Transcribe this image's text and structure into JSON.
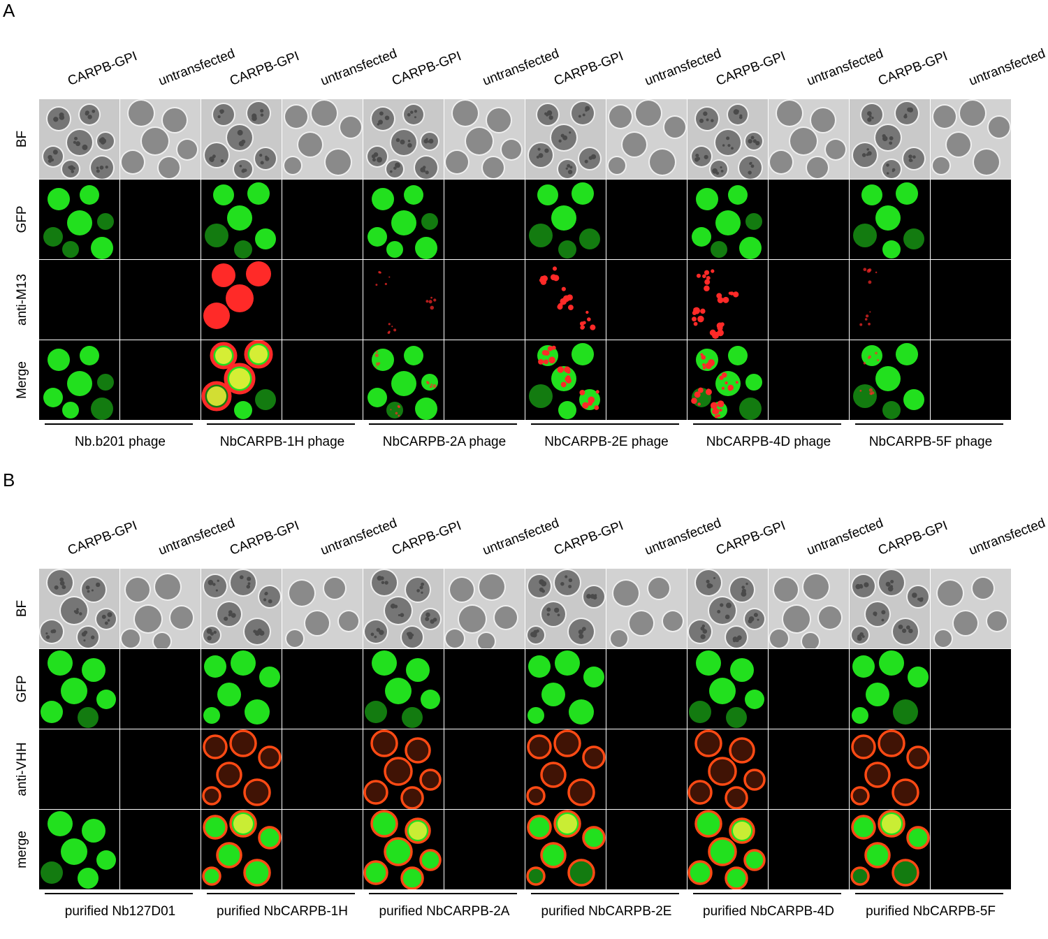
{
  "panels": [
    {
      "letter": "A",
      "columns": [
        "CARPB-GPI",
        "untransfected",
        "CARPB-GPI",
        "untransfected",
        "CARPB-GPI",
        "untransfected",
        "CARPB-GPI",
        "untransfected",
        "CARPB-GPI",
        "untransfected",
        "CARPB-GPI",
        "untransfected"
      ],
      "rows": [
        "BF",
        "GFP",
        "anti-M13",
        "Merge"
      ],
      "groups": [
        "Nb.b201 phage",
        "NbCARPB-1H phage",
        "NbCARPB-2A phage",
        "NbCARPB-2E phage",
        "NbCARPB-4D phage",
        "NbCARPB-5F phage"
      ],
      "red_signal": [
        "none",
        "strong",
        "weak",
        "medium",
        "medium",
        "weak"
      ]
    },
    {
      "letter": "B",
      "columns": [
        "CARPB-GPI",
        "untransfected",
        "CARPB-GPI",
        "untransfected",
        "CARPB-GPI",
        "untransfected",
        "CARPB-GPI",
        "untransfected",
        "CARPB-GPI",
        "untransfected",
        "CARPB-GPI",
        "untransfected"
      ],
      "rows": [
        "BF",
        "GFP",
        "anti-VHH",
        "merge"
      ],
      "groups": [
        "purified Nb127D01",
        "purified NbCARPB-1H",
        "purified NbCARPB-2A",
        "purified NbCARPB-2E",
        "purified NbCARPB-4D",
        "purified NbCARPB-5F"
      ],
      "red_signal": [
        "none",
        "membrane",
        "membrane",
        "membrane",
        "membrane",
        "membrane"
      ]
    }
  ],
  "colors": {
    "gfp": "#22e01e",
    "red": "#ff2a28",
    "orange_red": "#ff4a14",
    "merge_yellow": "#f4f03a",
    "black": "#000000",
    "bf_background": "#cfcfcf",
    "bf_cell": "#7a7a7a"
  }
}
